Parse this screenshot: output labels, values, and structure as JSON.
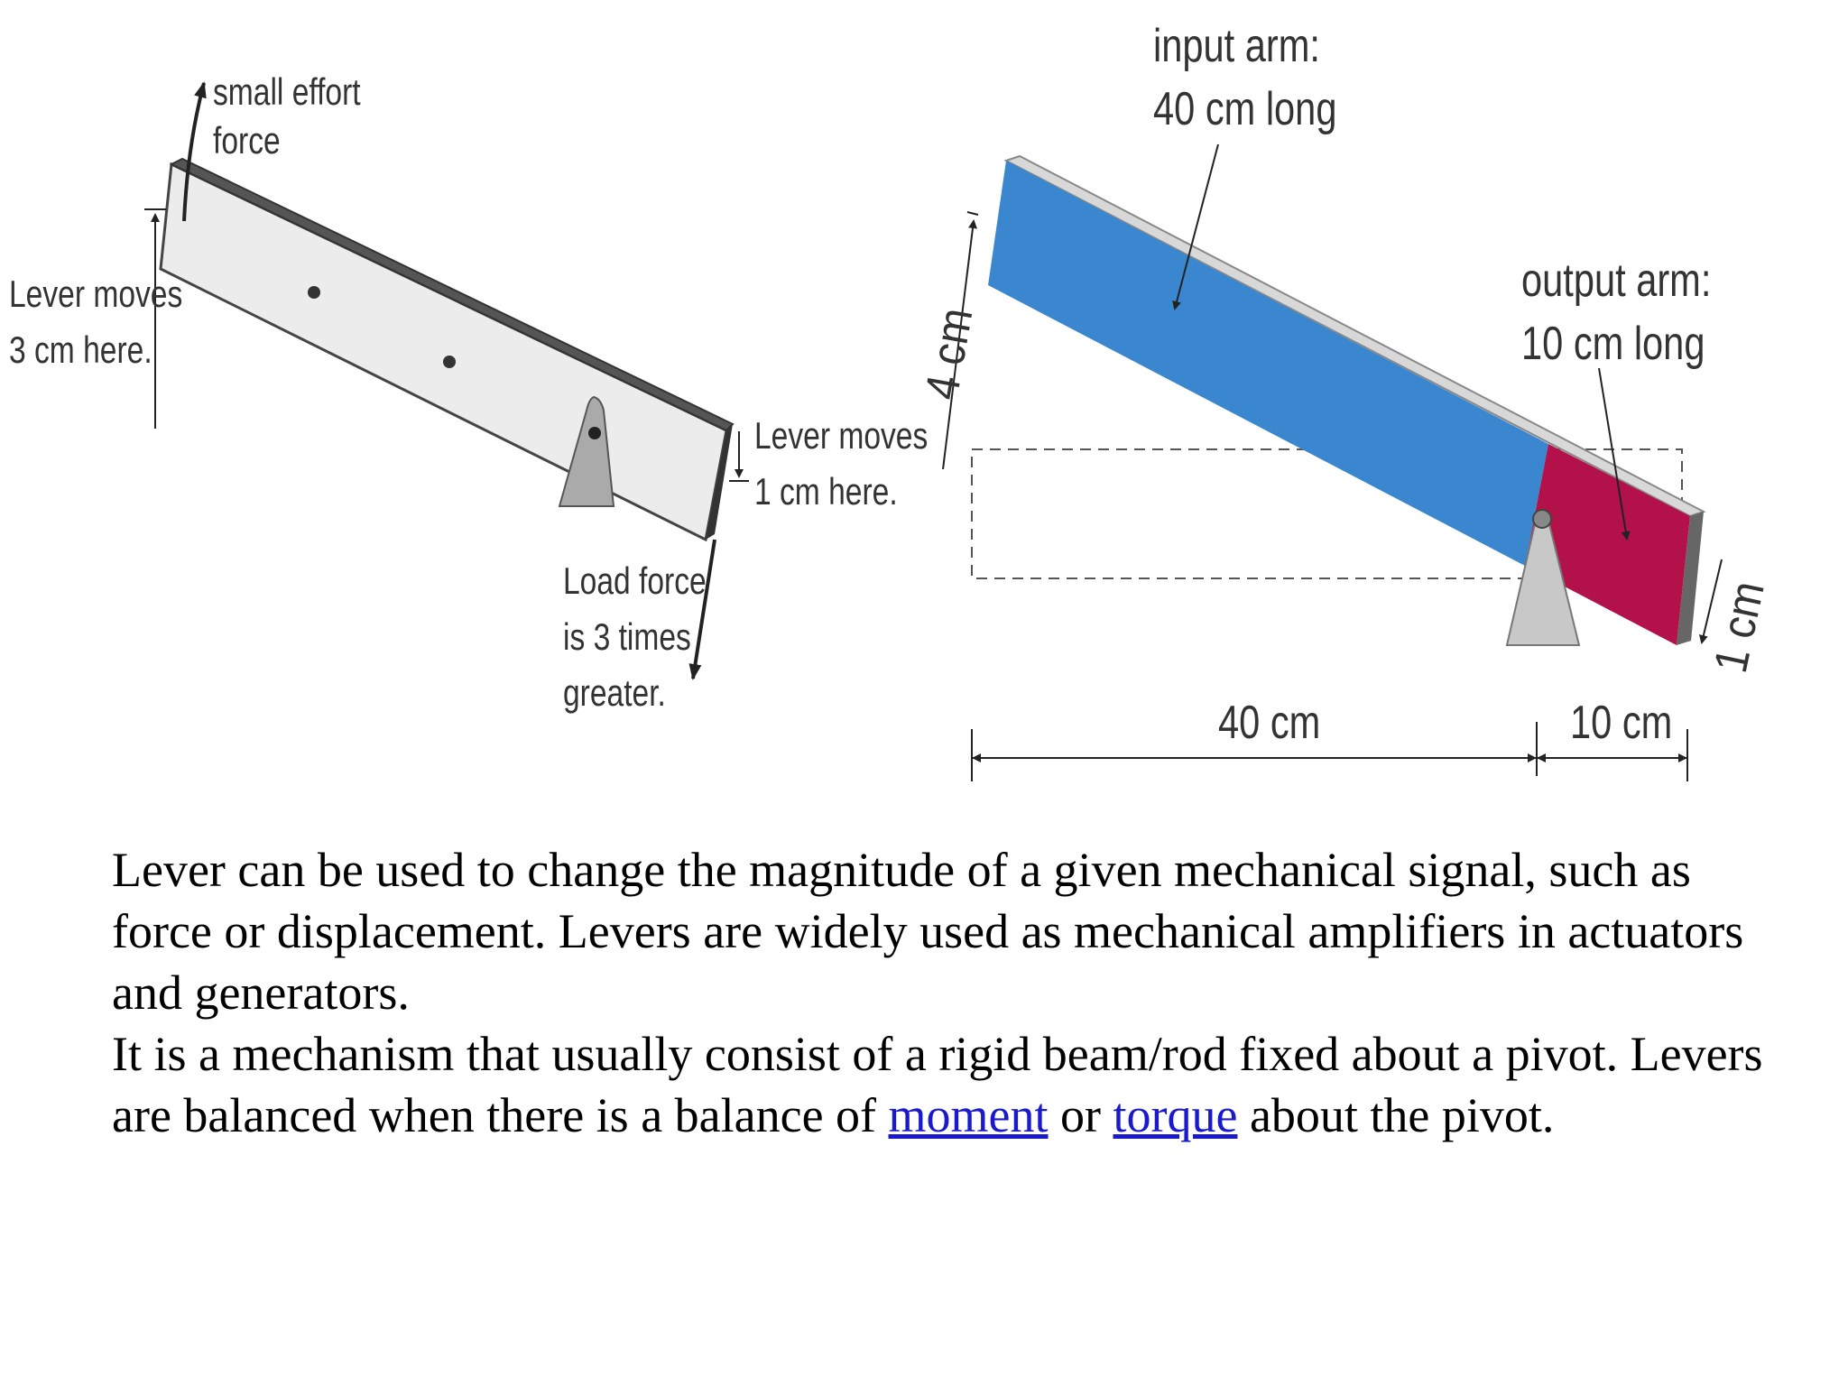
{
  "left_diagram": {
    "effort_label": [
      "small effort",
      "force"
    ],
    "input_move_label": [
      "Lever moves",
      "3 cm here."
    ],
    "output_move_label": [
      "Lever moves",
      "1 cm here."
    ],
    "load_label": [
      "Load force",
      "is 3 times",
      "greater."
    ]
  },
  "right_diagram": {
    "input_arm_label": [
      "input arm:",
      "40 cm long"
    ],
    "output_arm_label": [
      "output arm:",
      "10 cm long"
    ],
    "input_height": "4 cm",
    "output_height": "1 cm",
    "input_length": "40 cm",
    "output_length": "10 cm",
    "colors": {
      "input_arm": "#3a87cf",
      "output_arm": "#b3114a",
      "pivot": "#c8c8c8"
    }
  },
  "text": {
    "para1": "Lever can be used to change the magnitude of a given mechanical signal, such as force or displacement. Levers are widely used as mechanical amplifiers in actuators and generators.",
    "para2_prefix": "It is a mechanism that usually consist of a rigid beam/rod fixed about a pivot. Levers are balanced when there is a balance of ",
    "link_moment": "moment",
    "para2_mid": " or ",
    "link_torque": "torque",
    "para2_suffix": " about the pivot."
  }
}
